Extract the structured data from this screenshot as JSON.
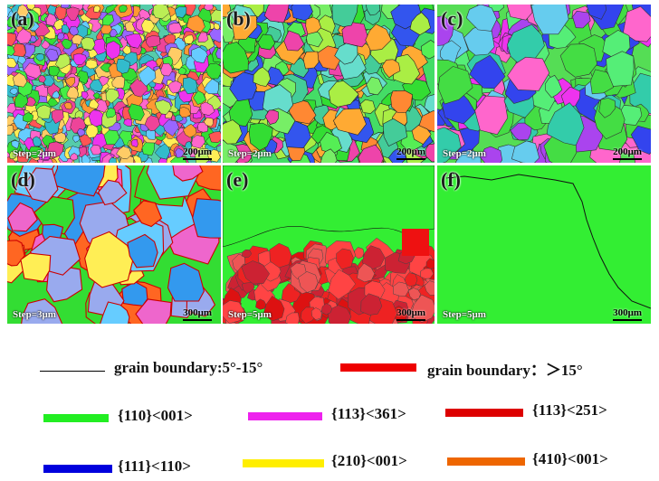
{
  "panels": [
    {
      "label": "(a)",
      "step": "Step=2μm",
      "scale": "200μm"
    },
    {
      "label": "(b)",
      "step": "Step=2μm",
      "scale": "200μm"
    },
    {
      "label": "(c)",
      "step": "Step=2μm",
      "scale": "200μm"
    },
    {
      "label": "(d)",
      "step": "Step=3μm",
      "scale": "300μm"
    },
    {
      "label": "(e)",
      "step": "Step=5μm",
      "scale": "300μm"
    },
    {
      "label": "(f)",
      "step": "Step=5μm",
      "scale": "300μm"
    }
  ],
  "legend": {
    "low_angle": "grain boundary:5°-15°",
    "high_angle": "grain boundary：＞15°",
    "items": [
      {
        "text": "{110}<001>",
        "color": "#22ee22"
      },
      {
        "text": "{113}<361>",
        "color": "#ee22ee"
      },
      {
        "text": "{113}<251>",
        "color": "#dd0000"
      },
      {
        "text": "{111}<110>",
        "color": "#0000dd"
      },
      {
        "text": "{210}<001>",
        "color": "#ffee00"
      },
      {
        "text": "{410}<001>",
        "color": "#ee6600"
      }
    ],
    "high_angle_color": "#ee0000"
  }
}
